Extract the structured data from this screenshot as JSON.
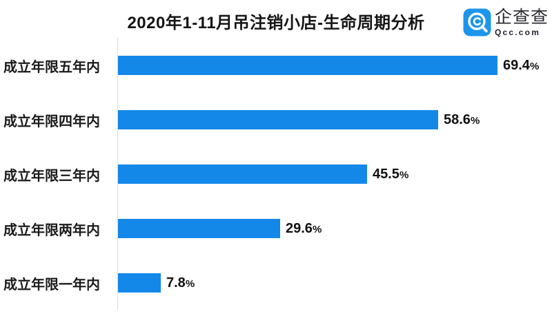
{
  "title": "2020年1-11月吊注销小店-生命周期分析",
  "logo": {
    "name": "企查查",
    "domain": "Qcc.com",
    "icon": "qcc-magnifier-icon",
    "icon_color": "#1d95ec"
  },
  "colors": {
    "bar": "#1388e9",
    "axis_line": "#dadada",
    "text": "#151515"
  },
  "chart_data": {
    "type": "bar",
    "orientation": "horizontal",
    "title": "2020年1-11月吊注销小店-生命周期分析",
    "categories": [
      "成立年限五年内",
      "成立年限四年内",
      "成立年限三年内",
      "成立年限两年内",
      "成立年限一年内"
    ],
    "values": [
      69.4,
      58.6,
      45.5,
      29.6,
      7.8
    ],
    "value_suffix": "%",
    "xlabel": "",
    "ylabel": "",
    "xlim": [
      0,
      79
    ],
    "grid": false,
    "legend": false,
    "bar_color": "#1388e9"
  }
}
